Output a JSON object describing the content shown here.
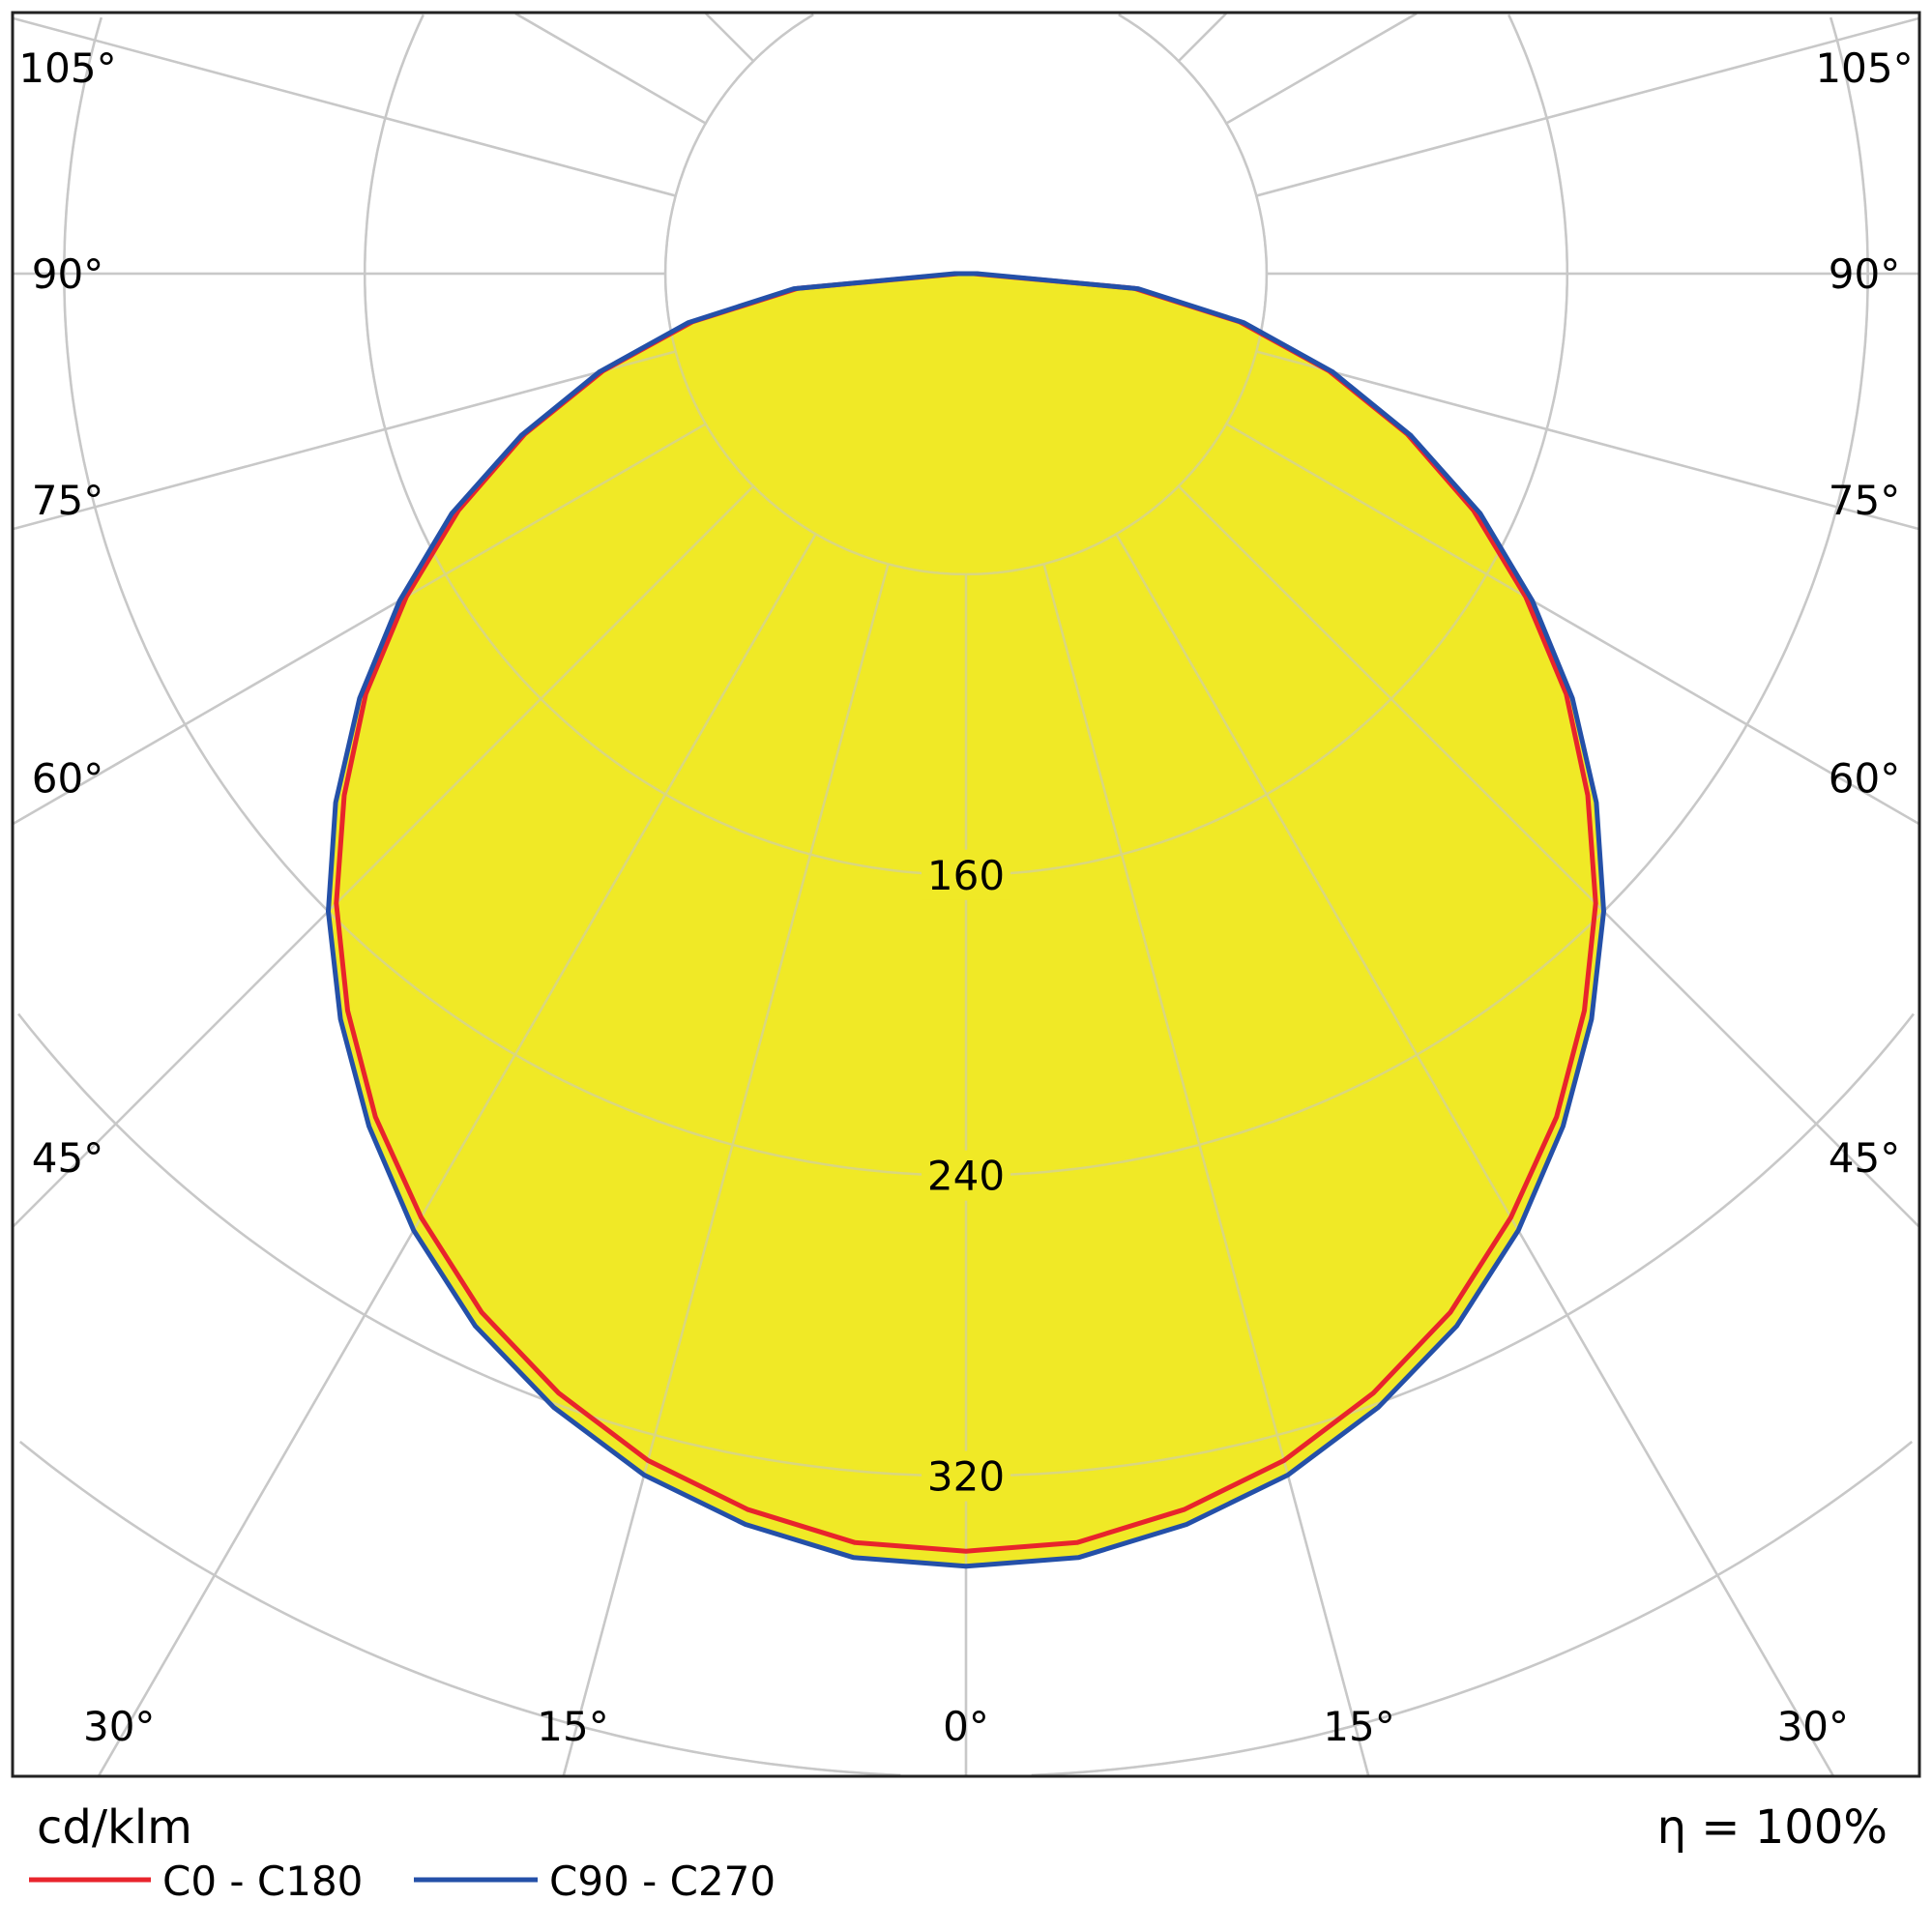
{
  "chart_data": {
    "type": "polar",
    "unit_label": "cd/klm",
    "efficiency_label": "η = 100%",
    "radial_ticks": [
      80,
      160,
      240,
      320,
      400
    ],
    "radial_tick_labels": [
      "160",
      "240",
      "320"
    ],
    "radial_range": [
      0,
      400
    ],
    "angle_ticks": [
      0,
      15,
      30,
      45,
      60,
      75,
      90,
      105
    ],
    "angle_tick_labels": [
      "0°",
      "15°",
      "30°",
      "45°",
      "60°",
      "75°",
      "90°",
      "105°"
    ],
    "grid": true,
    "legend_placement": "bottom-left",
    "fill_color": "#f0e926",
    "angles": [
      0,
      5,
      10,
      15,
      20,
      25,
      30,
      35,
      40,
      45,
      50,
      55,
      60,
      65,
      70,
      75,
      80,
      85,
      90
    ],
    "series": [
      {
        "name": "C0 - C180",
        "color": "#e8242c",
        "values": [
          340,
          339,
          334,
          327,
          317,
          305,
          290,
          274,
          256,
          237,
          216,
          195,
          172,
          149,
          125,
          100,
          74,
          45,
          2
        ]
      },
      {
        "name": "C90 - C270",
        "color": "#2450a8",
        "values": [
          344,
          343,
          338,
          331,
          321,
          309,
          294,
          277,
          259,
          240,
          219,
          197,
          174,
          151,
          126,
          101,
          75,
          46,
          3
        ]
      }
    ]
  }
}
